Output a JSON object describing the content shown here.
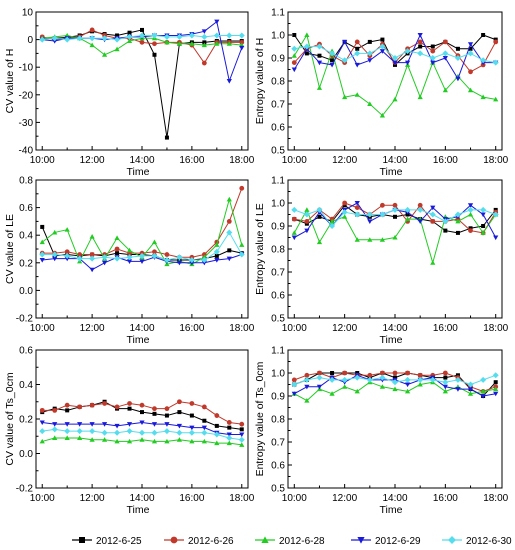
{
  "figure": {
    "legend": [
      {
        "name": "2012-6-25",
        "color": "#000000",
        "marker": "square"
      },
      {
        "name": "2012-6-26",
        "color": "#c0392b",
        "marker": "circle"
      },
      {
        "name": "2012-6-28",
        "color": "#22cc22",
        "marker": "triangle-up"
      },
      {
        "name": "2012-6-29",
        "color": "#1a1adb",
        "marker": "triangle-down"
      },
      {
        "name": "2012-6-30",
        "color": "#55ddee",
        "marker": "diamond"
      }
    ]
  },
  "chart_data": [
    {
      "id": "cv_h",
      "type": "line",
      "xlabel": "Time",
      "ylabel": "CV value of H",
      "x_ticks": [
        "10:00",
        "12:00",
        "14:00",
        "16:00",
        "18:00"
      ],
      "xlim": [
        9.75,
        18.25
      ],
      "y_ticks": [
        "10",
        "0",
        "-10",
        "-20",
        "-30",
        "-40"
      ],
      "ylim": [
        -40,
        10
      ],
      "x": [
        10,
        10.5,
        11,
        11.5,
        12,
        12.5,
        13,
        13.5,
        14,
        14.5,
        15,
        15.5,
        16,
        16.5,
        17,
        17.5,
        18
      ],
      "series": [
        {
          "legend_index": 0,
          "values": [
            0.5,
            0.5,
            0.8,
            1.5,
            3,
            2,
            1.5,
            2.5,
            3.5,
            -5.5,
            -35.5,
            -1.5,
            -1,
            -1,
            -0.5,
            -0.5,
            -0.5
          ]
        },
        {
          "legend_index": 1,
          "values": [
            1,
            0,
            0.5,
            1,
            3.5,
            1.5,
            0.5,
            0.5,
            -1,
            -1.5,
            -1,
            -1,
            -2,
            -8.5,
            -1,
            -1,
            -1
          ]
        },
        {
          "legend_index": 2,
          "values": [
            0.5,
            1,
            1.5,
            0.5,
            -2,
            -5.5,
            -3.5,
            -0.5,
            0.5,
            0.5,
            -1,
            -1.5,
            -1.5,
            -2,
            -1.5,
            -1.5,
            -2
          ]
        },
        {
          "legend_index": 3,
          "values": [
            0,
            -0.5,
            0.5,
            0.5,
            0.5,
            0,
            0.5,
            1,
            1,
            1.5,
            1.5,
            1.5,
            2,
            3,
            6.5,
            -15,
            -3
          ]
        },
        {
          "legend_index": 4,
          "values": [
            0,
            0.5,
            0,
            0.5,
            0.5,
            0.5,
            0,
            1,
            1.5,
            1.5,
            1,
            1,
            1.5,
            1,
            1.5,
            1.5,
            1.5
          ]
        }
      ]
    },
    {
      "id": "ent_h",
      "type": "line",
      "xlabel": "Time",
      "ylabel": "Entropy value of H",
      "x_ticks": [
        "10:00",
        "12:00",
        "14:00",
        "16:00",
        "18:00"
      ],
      "xlim": [
        9.75,
        18.25
      ],
      "y_ticks": [
        "1.1",
        "1.0",
        "0.9",
        "0.8",
        "0.7",
        "0.6",
        "0.5"
      ],
      "ylim": [
        0.5,
        1.1
      ],
      "x": [
        10,
        10.5,
        11,
        11.5,
        12,
        12.5,
        13,
        13.5,
        14,
        14.5,
        15,
        15.5,
        16,
        16.5,
        17,
        17.5,
        18
      ],
      "series": [
        {
          "legend_index": 0,
          "values": [
            1.0,
            0.92,
            0.91,
            0.89,
            0.97,
            0.94,
            0.97,
            0.98,
            0.87,
            0.92,
            0.95,
            0.95,
            0.97,
            0.94,
            0.94,
            1.0,
            0.98
          ]
        },
        {
          "legend_index": 1,
          "values": [
            0.88,
            0.94,
            0.96,
            0.91,
            0.88,
            0.97,
            0.91,
            0.96,
            0.88,
            0.94,
            0.97,
            0.93,
            0.97,
            0.91,
            0.84,
            0.87,
            0.97
          ]
        },
        {
          "legend_index": 2,
          "values": [
            0.91,
            1.0,
            0.77,
            0.93,
            0.73,
            0.74,
            0.7,
            0.65,
            0.72,
            0.87,
            0.73,
            0.88,
            0.76,
            0.82,
            0.76,
            0.73,
            0.72
          ]
        },
        {
          "legend_index": 3,
          "values": [
            0.85,
            0.94,
            0.88,
            0.87,
            0.97,
            0.87,
            0.89,
            0.93,
            0.88,
            0.88,
            1.0,
            0.88,
            0.9,
            0.81,
            0.96,
            0.88,
            0.88
          ]
        },
        {
          "legend_index": 4,
          "values": [
            0.94,
            0.95,
            0.95,
            0.92,
            0.89,
            0.92,
            0.92,
            0.95,
            0.9,
            0.93,
            0.92,
            0.9,
            0.92,
            0.9,
            0.92,
            0.89,
            0.88
          ]
        }
      ]
    },
    {
      "id": "cv_le",
      "type": "line",
      "xlabel": "Time",
      "ylabel": "CV value of LE",
      "x_ticks": [
        "10:00",
        "12:00",
        "14:00",
        "16:00",
        "18:00"
      ],
      "xlim": [
        9.75,
        18.25
      ],
      "y_ticks": [
        "0.8",
        "0.6",
        "0.4",
        "0.2",
        "0.0",
        "-0.2"
      ],
      "ylim": [
        -0.2,
        0.8
      ],
      "x": [
        10,
        10.5,
        11,
        11.5,
        12,
        12.5,
        13,
        13.5,
        14,
        14.5,
        15,
        15.5,
        16,
        16.5,
        17,
        17.5,
        18
      ],
      "series": [
        {
          "legend_index": 0,
          "values": [
            0.46,
            0.25,
            0.26,
            0.25,
            0.26,
            0.25,
            0.27,
            0.26,
            0.26,
            0.25,
            0.22,
            0.22,
            0.22,
            0.23,
            0.25,
            0.29,
            0.27
          ]
        },
        {
          "legend_index": 1,
          "values": [
            0.27,
            0.27,
            0.28,
            0.26,
            0.26,
            0.26,
            0.3,
            0.27,
            0.27,
            0.28,
            0.26,
            0.24,
            0.24,
            0.26,
            0.35,
            0.5,
            0.74
          ]
        },
        {
          "legend_index": 2,
          "values": [
            0.35,
            0.42,
            0.44,
            0.21,
            0.39,
            0.23,
            0.38,
            0.29,
            0.24,
            0.35,
            0.19,
            0.21,
            0.19,
            0.24,
            0.33,
            0.66,
            0.33
          ]
        },
        {
          "legend_index": 3,
          "values": [
            0.22,
            0.23,
            0.23,
            0.23,
            0.15,
            0.2,
            0.24,
            0.21,
            0.21,
            0.24,
            0.21,
            0.2,
            0.2,
            0.2,
            0.22,
            0.23,
            0.26
          ]
        },
        {
          "legend_index": 4,
          "values": [
            0.26,
            0.26,
            0.25,
            0.23,
            0.23,
            0.24,
            0.23,
            0.24,
            0.25,
            0.25,
            0.22,
            0.24,
            0.22,
            0.22,
            0.28,
            0.42,
            0.26
          ]
        }
      ]
    },
    {
      "id": "ent_le",
      "type": "line",
      "xlabel": "Time",
      "ylabel": "Entropy value of LE",
      "x_ticks": [
        "10:00",
        "12:00",
        "14:00",
        "16:00",
        "18:00"
      ],
      "xlim": [
        9.75,
        18.25
      ],
      "y_ticks": [
        "1.1",
        "1.0",
        "0.9",
        "0.8",
        "0.7",
        "0.6",
        "0.5"
      ],
      "ylim": [
        0.5,
        1.1
      ],
      "x": [
        10,
        10.5,
        11,
        11.5,
        12,
        12.5,
        13,
        13.5,
        14,
        14.5,
        15,
        15.5,
        16,
        16.5,
        17,
        17.5,
        18
      ],
      "series": [
        {
          "legend_index": 0,
          "values": [
            0.93,
            0.91,
            0.94,
            0.92,
            0.99,
            0.95,
            0.94,
            0.95,
            0.94,
            0.95,
            0.93,
            0.92,
            0.88,
            0.87,
            0.89,
            0.9,
            0.97
          ]
        },
        {
          "legend_index": 1,
          "values": [
            0.93,
            0.92,
            0.97,
            0.93,
            1.0,
            0.98,
            0.95,
            0.99,
            0.99,
            0.92,
            0.99,
            0.92,
            0.92,
            0.93,
            0.88,
            0.87,
            0.96
          ]
        },
        {
          "legend_index": 2,
          "values": [
            0.87,
            0.97,
            0.83,
            0.92,
            0.94,
            0.84,
            0.84,
            0.84,
            0.85,
            0.93,
            0.93,
            0.74,
            0.94,
            0.92,
            0.95,
            0.87,
            0.95
          ]
        },
        {
          "legend_index": 3,
          "values": [
            0.85,
            0.88,
            0.96,
            0.9,
            0.97,
            1.0,
            0.92,
            0.95,
            0.97,
            0.96,
            0.92,
            0.98,
            0.93,
            0.94,
            0.99,
            0.95,
            0.85
          ]
        },
        {
          "legend_index": 4,
          "values": [
            0.97,
            0.95,
            0.97,
            0.9,
            0.96,
            0.95,
            0.95,
            0.95,
            0.97,
            0.97,
            0.97,
            0.95,
            0.92,
            0.95,
            0.97,
            0.97,
            0.95
          ]
        }
      ]
    },
    {
      "id": "cv_ts",
      "type": "line",
      "xlabel": "Time",
      "ylabel": "CV value of Ts_0cm",
      "x_ticks": [
        "10:00",
        "12:00",
        "14:00",
        "16:00",
        "18:00"
      ],
      "xlim": [
        9.75,
        18.25
      ],
      "y_ticks": [
        "0.6",
        "0.4",
        "0.2",
        "0.0",
        "-0.2"
      ],
      "ylim": [
        -0.2,
        0.6
      ],
      "x": [
        10,
        10.5,
        11,
        11.5,
        12,
        12.5,
        13,
        13.5,
        14,
        14.5,
        15,
        15.5,
        16,
        16.5,
        17,
        17.5,
        18
      ],
      "series": [
        {
          "legend_index": 0,
          "values": [
            0.24,
            0.26,
            0.25,
            0.27,
            0.28,
            0.3,
            0.26,
            0.26,
            0.24,
            0.23,
            0.22,
            0.24,
            0.22,
            0.19,
            0.16,
            0.15,
            0.14
          ]
        },
        {
          "legend_index": 1,
          "values": [
            0.25,
            0.25,
            0.28,
            0.27,
            0.28,
            0.29,
            0.27,
            0.29,
            0.28,
            0.26,
            0.26,
            0.3,
            0.29,
            0.27,
            0.22,
            0.18,
            0.17
          ]
        },
        {
          "legend_index": 2,
          "values": [
            0.07,
            0.09,
            0.09,
            0.09,
            0.08,
            0.08,
            0.07,
            0.07,
            0.08,
            0.07,
            0.07,
            0.08,
            0.07,
            0.07,
            0.06,
            0.06,
            0.05
          ]
        },
        {
          "legend_index": 3,
          "values": [
            0.18,
            0.17,
            0.17,
            0.17,
            0.17,
            0.17,
            0.16,
            0.17,
            0.18,
            0.17,
            0.17,
            0.16,
            0.15,
            0.15,
            0.12,
            0.11,
            0.11
          ]
        },
        {
          "legend_index": 4,
          "values": [
            0.13,
            0.14,
            0.13,
            0.13,
            0.13,
            0.12,
            0.12,
            0.13,
            0.12,
            0.12,
            0.13,
            0.12,
            0.12,
            0.12,
            0.11,
            0.09,
            0.08
          ]
        }
      ]
    },
    {
      "id": "ent_ts",
      "type": "line",
      "xlabel": "Time",
      "ylabel": "Entropy value of Ts_0cm",
      "x_ticks": [
        "10:00",
        "12:00",
        "14:00",
        "16:00",
        "18:00"
      ],
      "xlim": [
        9.75,
        18.25
      ],
      "y_ticks": [
        "1.1",
        "1.0",
        "0.9",
        "0.8",
        "0.7",
        "0.6",
        "0.5"
      ],
      "ylim": [
        0.5,
        1.1
      ],
      "x": [
        10,
        10.5,
        11,
        11.5,
        12,
        12.5,
        13,
        13.5,
        14,
        14.5,
        15,
        15.5,
        16,
        16.5,
        17,
        17.5,
        18
      ],
      "series": [
        {
          "legend_index": 0,
          "values": [
            0.95,
            0.97,
            1.0,
            1.0,
            1.0,
            1.0,
            0.98,
            1.0,
            0.98,
            1.0,
            0.99,
            0.98,
            0.98,
            0.99,
            0.93,
            0.9,
            0.96
          ]
        },
        {
          "legend_index": 1,
          "values": [
            0.97,
            0.99,
            1.0,
            0.98,
            1.0,
            0.99,
            0.99,
            1.0,
            1.0,
            1.0,
            0.99,
            0.99,
            1.0,
            0.98,
            0.94,
            0.92,
            0.94
          ]
        },
        {
          "legend_index": 2,
          "values": [
            0.91,
            0.88,
            0.93,
            0.91,
            0.94,
            0.92,
            0.96,
            0.94,
            0.93,
            0.92,
            0.95,
            0.96,
            0.92,
            0.94,
            0.91,
            0.92,
            0.93
          ]
        },
        {
          "legend_index": 3,
          "values": [
            0.91,
            0.94,
            0.94,
            0.98,
            0.96,
            0.99,
            0.97,
            0.97,
            0.97,
            0.95,
            0.97,
            0.98,
            0.94,
            0.93,
            0.93,
            0.9,
            0.91
          ]
        },
        {
          "legend_index": 4,
          "values": [
            0.95,
            0.97,
            0.98,
            0.97,
            0.97,
            0.98,
            0.97,
            0.98,
            0.96,
            0.97,
            0.97,
            0.97,
            0.96,
            0.97,
            0.95,
            0.97,
            0.99
          ]
        }
      ]
    }
  ]
}
